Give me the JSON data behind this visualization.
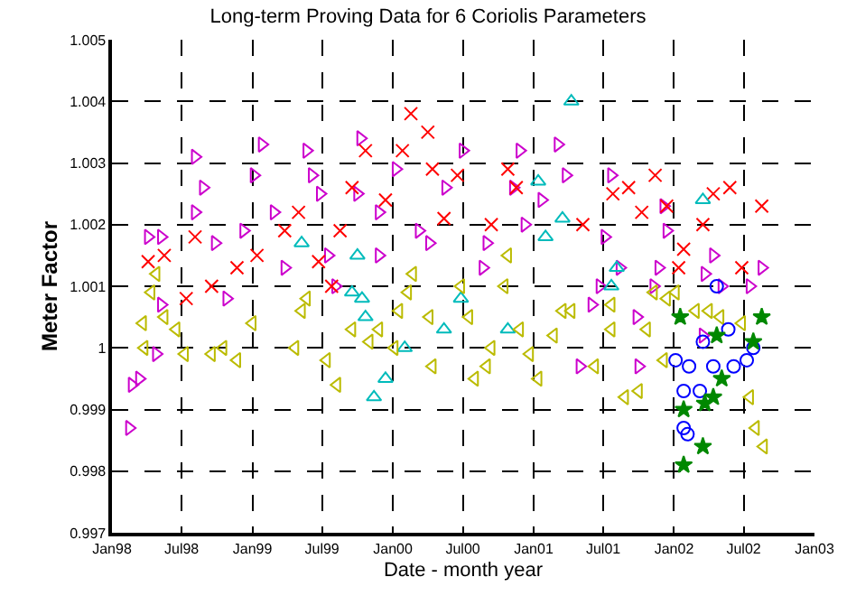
{
  "chart_data": {
    "type": "scatter",
    "title": "Long-term Proving Data for 6 Coriolis Parameters",
    "xlabel": "Date - month year",
    "ylabel": "Meter Factor",
    "xlim": [
      "1998-01-01",
      "2003-01-01"
    ],
    "xticks": [
      {
        "value": "1998-01-01",
        "label": "Jan98"
      },
      {
        "value": "1998-07-01",
        "label": "Jul98"
      },
      {
        "value": "1999-01-01",
        "label": "Jan99"
      },
      {
        "value": "1999-07-01",
        "label": "Jul99"
      },
      {
        "value": "2000-01-01",
        "label": "Jan00"
      },
      {
        "value": "2000-07-01",
        "label": "Jul00"
      },
      {
        "value": "2001-01-01",
        "label": "Jan01"
      },
      {
        "value": "2001-07-01",
        "label": "Jul01"
      },
      {
        "value": "2002-01-01",
        "label": "Jan02"
      },
      {
        "value": "2002-07-01",
        "label": "Jul02"
      },
      {
        "value": "2003-01-01",
        "label": "Jan03"
      }
    ],
    "ylim": [
      0.997,
      1.005
    ],
    "yticks": [
      0.997,
      0.998,
      0.999,
      {
        "value": 1.0,
        "label": "1"
      },
      1.001,
      1.002,
      1.003,
      1.004,
      1.005
    ],
    "grid": true,
    "series": [
      {
        "color": "#cc00cc",
        "marker": "triangle-right",
        "x": [
          "1998-05-09",
          "1998-08-05",
          "1998-08-26",
          "1998-08-05",
          "1998-09-26",
          "1998-12-09",
          "1999-01-26",
          "1999-01-05",
          "1999-02-26",
          "1999-05-22",
          "1999-06-05",
          "1999-06-26",
          "1999-03-26",
          "1999-07-17",
          "1999-08-05",
          "1999-10-09",
          "1999-10-01",
          "1999-11-26",
          "1999-11-26",
          "2000-01-09",
          "2000-03-09",
          "2000-04-05",
          "2000-05-17",
          "2000-07-01",
          "1998-04-05",
          "1998-05-09",
          "1998-10-26",
          "1998-03-13",
          "1998-02-22",
          "1998-02-15",
          "1998-04-26",
          "2000-11-26",
          "2000-11-09",
          "2001-03-05",
          "2001-03-26",
          "2001-01-22",
          "2000-12-09",
          "2000-09-01",
          "2000-08-22",
          "2001-07-22",
          "2001-07-05",
          "2001-08-13",
          "2001-12-05",
          "2001-12-13",
          "2001-11-22",
          "2001-11-09",
          "2001-06-22",
          "2001-06-01",
          "2001-09-26",
          "2002-04-13",
          "2002-05-05",
          "2002-03-22",
          "2002-08-17",
          "2002-07-17",
          "2002-03-17",
          "2001-05-01",
          "2001-10-01"
        ],
        "values": [
          1.0018,
          1.0031,
          1.0026,
          1.0022,
          1.0017,
          1.0019,
          1.0033,
          1.0028,
          1.0022,
          1.0032,
          1.0028,
          1.0025,
          1.0013,
          1.0015,
          1.001,
          1.0034,
          1.0025,
          1.0022,
          1.0015,
          1.0029,
          1.0019,
          1.0017,
          1.0026,
          1.0032,
          1.0018,
          1.0007,
          1.0008,
          0.9995,
          0.9994,
          0.9987,
          0.9999,
          1.0032,
          1.0026,
          1.0033,
          1.0028,
          1.0024,
          1.002,
          1.0017,
          1.0013,
          1.0028,
          1.0018,
          1.0013,
          1.0023,
          1.0019,
          1.0013,
          1.001,
          1.001,
          1.0007,
          1.0005,
          1.0015,
          1.001,
          1.0012,
          1.0013,
          1.001,
          1.0002,
          0.9997,
          0.9997
        ]
      },
      {
        "color": "#ff0000",
        "marker": "cross",
        "x": [
          "2000-02-17",
          "2000-04-01",
          "2000-01-26",
          "1999-10-22",
          "2000-04-13",
          "1999-12-13",
          "1999-09-17",
          "1999-05-01",
          "1999-03-26",
          "1999-01-13",
          "1998-11-22",
          "1998-09-17",
          "1998-07-13",
          "1998-05-17",
          "1998-04-05",
          "1999-08-17",
          "1999-06-22",
          "1999-07-26",
          "2000-05-13",
          "2000-06-17",
          "1998-08-05",
          "2000-10-26",
          "2000-11-17",
          "2000-09-13",
          "2001-05-09",
          "2001-07-26",
          "2001-09-05",
          "2001-11-13",
          "2001-10-09",
          "2001-12-13",
          "2002-03-17",
          "2002-04-13",
          "2002-05-26",
          "2002-08-17",
          "2002-01-26",
          "2002-01-13",
          "2002-06-26"
        ],
        "values": [
          1.0038,
          1.0035,
          1.0032,
          1.0032,
          1.0029,
          1.0024,
          1.0026,
          1.0022,
          1.0019,
          1.0015,
          1.0013,
          1.001,
          1.0008,
          1.0015,
          1.0014,
          1.0019,
          1.0014,
          1.001,
          1.0021,
          1.0028,
          1.0018,
          1.0029,
          1.0026,
          1.002,
          1.002,
          1.0025,
          1.0026,
          1.0028,
          1.0022,
          1.0023,
          1.002,
          1.0025,
          1.0026,
          1.0023,
          1.0016,
          1.0013,
          1.0013
        ]
      },
      {
        "color": "#00bbbb",
        "marker": "triangle-up",
        "x": [
          "1999-05-09",
          "1999-10-01",
          "1999-09-17",
          "1999-10-13",
          "1999-10-22",
          "2000-02-01",
          "1999-12-13",
          "1999-11-13",
          "2000-06-26",
          "2000-05-13",
          "2001-04-09",
          "2001-01-13",
          "2001-03-17",
          "2001-02-01",
          "2001-08-05",
          "2001-07-22",
          "2002-03-17",
          "2000-10-26"
        ],
        "values": [
          1.0017,
          1.0015,
          1.0009,
          1.0008,
          1.0005,
          1.0,
          0.9995,
          0.9992,
          1.0008,
          1.0003,
          1.004,
          1.0027,
          1.0021,
          1.0018,
          1.0013,
          1.001,
          1.0024,
          1.0003
        ]
      },
      {
        "color": "#bbbb00",
        "marker": "triangle-left",
        "x": [
          "1998-04-13",
          "1998-03-22",
          "1998-03-26",
          "1998-05-17",
          "1998-06-17",
          "1998-07-09",
          "1998-09-17",
          "1998-10-17",
          "1998-11-22",
          "1999-01-01",
          "1999-05-09",
          "1999-04-22",
          "1999-05-22",
          "1999-07-13",
          "1999-08-09",
          "1999-09-17",
          "1999-11-01",
          "1999-11-26",
          "2000-01-05",
          "2000-01-17",
          "2000-02-09",
          "2000-02-22",
          "2000-04-05",
          "2000-04-13",
          "2000-06-26",
          "2000-08-01",
          "2000-07-17",
          "1998-04-26",
          "2000-09-01",
          "2000-09-13",
          "2000-10-26",
          "2000-10-17",
          "2000-11-26",
          "2000-12-22",
          "2001-02-22",
          "2001-03-17",
          "2001-04-09",
          "2001-06-09",
          "2001-07-22",
          "2001-07-22",
          "2001-08-26",
          "2001-10-01",
          "2001-10-22",
          "2001-11-09",
          "2001-12-13",
          "2002-01-05",
          "2001-12-05",
          "2002-02-26",
          "2002-04-01",
          "2002-05-01",
          "2002-06-26",
          "2002-07-17",
          "2002-08-01",
          "2002-08-22",
          "2001-01-13"
        ],
        "values": [
          1.0009,
          1.0004,
          1.0,
          1.0005,
          1.0003,
          0.9999,
          0.9999,
          1.0,
          0.9998,
          1.0004,
          1.0006,
          1.0,
          1.0008,
          0.9998,
          0.9994,
          1.0003,
          1.0001,
          1.0003,
          1.0,
          1.0006,
          1.0009,
          1.0012,
          1.0005,
          0.9997,
          1.001,
          0.9995,
          1.0005,
          1.0012,
          0.9997,
          1.0,
          1.0015,
          1.001,
          1.0003,
          0.9999,
          1.0002,
          1.0006,
          1.0006,
          0.9997,
          1.0007,
          1.0003,
          0.9992,
          0.9993,
          1.0003,
          1.0009,
          1.0008,
          1.0009,
          0.9998,
          1.0006,
          1.0006,
          1.0005,
          1.0004,
          0.9992,
          0.9987,
          0.9984,
          0.9995
        ]
      },
      {
        "color": "#0000ff",
        "marker": "circle",
        "x": [
          "2002-01-05",
          "2002-02-09",
          "2002-01-26",
          "2002-03-09",
          "2002-04-13",
          "2002-05-22",
          "2002-06-05",
          "2002-07-09",
          "2002-07-26",
          "2002-01-26",
          "2002-02-05",
          "2002-03-17",
          "2002-04-22"
        ],
        "values": [
          0.9998,
          0.9997,
          0.9993,
          0.9993,
          0.9997,
          1.0003,
          0.9997,
          0.9998,
          1.0,
          0.9987,
          0.9986,
          1.0001,
          1.001
        ]
      },
      {
        "color": "#008800",
        "marker": "star",
        "x": [
          "2002-01-17",
          "2002-04-22",
          "2002-05-05",
          "2002-04-13",
          "2002-03-22",
          "2002-01-26",
          "2002-03-17",
          "2002-01-26",
          "2002-08-17",
          "2002-07-26"
        ],
        "values": [
          1.0005,
          1.0002,
          0.9995,
          0.9992,
          0.9991,
          0.999,
          0.9984,
          0.9981,
          1.0005,
          1.0001
        ]
      }
    ]
  }
}
